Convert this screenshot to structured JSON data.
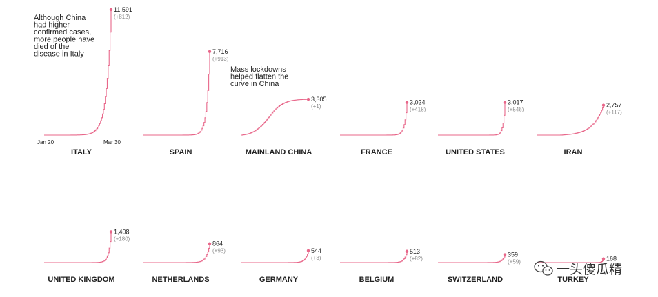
{
  "chart_data": {
    "type": "line",
    "xaxis": {
      "start_label": "Jan 20",
      "end_label": "Mar 30"
    },
    "annotations": [
      {
        "panel": "ITALY",
        "lines": [
          "Although China",
          "had higher",
          "confirmed cases,",
          "more people have",
          "died of the",
          "disease in Italy"
        ]
      },
      {
        "panel": "SPAIN",
        "lines": [
          "Mass lockdowns",
          "helped flatten the",
          "curve in China"
        ]
      }
    ],
    "panels": [
      {
        "name": "ITALY",
        "total": "11,591",
        "change": "(+812)",
        "value": 11591,
        "shape": "exp",
        "k": 9,
        "onset": 0.35
      },
      {
        "name": "SPAIN",
        "total": "7,716",
        "change": "(+913)",
        "value": 7716,
        "shape": "exp",
        "k": 11,
        "onset": 0.5
      },
      {
        "name": "MAINLAND CHINA",
        "total": "3,305",
        "change": "(+1)",
        "value": 3305,
        "shape": "china"
      },
      {
        "name": "FRANCE",
        "total": "3,024",
        "change": "(+418)",
        "value": 3024,
        "shape": "exp",
        "k": 12,
        "onset": 0.55
      },
      {
        "name": "UNITED STATES",
        "total": "3,017",
        "change": "(+546)",
        "value": 3017,
        "shape": "exp",
        "k": 14,
        "onset": 0.6
      },
      {
        "name": "IRAN",
        "total": "2,757",
        "change": "(+117)",
        "value": 2757,
        "shape": "exp",
        "k": 4,
        "onset": 0.35
      },
      {
        "name": "UNITED KINGDOM",
        "total": "1,408",
        "change": "(+180)",
        "value": 1408,
        "shape": "exp",
        "k": 12,
        "onset": 0.55
      },
      {
        "name": "NETHERLANDS",
        "total": "864",
        "change": "(+93)",
        "value": 864,
        "shape": "exp",
        "k": 9,
        "onset": 0.55
      },
      {
        "name": "GERMANY",
        "total": "544",
        "change": "(+3)",
        "value": 544,
        "shape": "exp",
        "k": 9,
        "onset": 0.6
      },
      {
        "name": "BELGIUM",
        "total": "513",
        "change": "(+82)",
        "value": 513,
        "shape": "exp",
        "k": 10,
        "onset": 0.6
      },
      {
        "name": "SWITZERLAND",
        "total": "359",
        "change": "(+59)",
        "value": 359,
        "shape": "exp",
        "k": 10,
        "onset": 0.6
      },
      {
        "name": "TURKEY",
        "total": "168",
        "change": "",
        "value": 168,
        "shape": "exp",
        "k": 14,
        "onset": 0.7
      }
    ],
    "line_color": "#e8678a"
  },
  "watermark": {
    "text": "一头傻瓜精",
    "icon": "wechat-icon"
  }
}
